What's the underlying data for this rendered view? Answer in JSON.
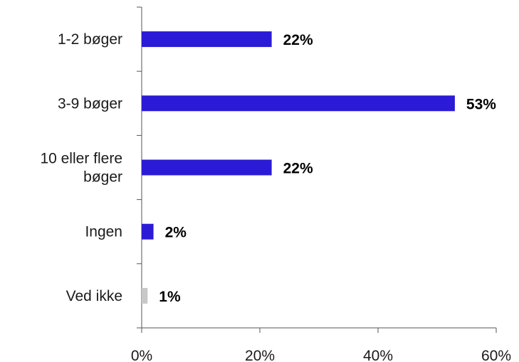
{
  "chart_data": {
    "type": "bar",
    "orientation": "horizontal",
    "categories": [
      "1-2 bøger",
      "3-9 bøger",
      "10 eller flere bøger",
      "Ingen",
      "Ved ikke"
    ],
    "category_lines": [
      [
        "1-2 bøger"
      ],
      [
        "3-9 bøger"
      ],
      [
        "10 eller flere",
        "bøger"
      ],
      [
        "Ingen"
      ],
      [
        "Ved ikke"
      ]
    ],
    "values": [
      22,
      53,
      22,
      2,
      1
    ],
    "value_labels": [
      "22%",
      "53%",
      "22%",
      "2%",
      "1%"
    ],
    "bar_colors": [
      "#2b1bd6",
      "#2b1bd6",
      "#2b1bd6",
      "#2b1bd6",
      "#c8c8c8"
    ],
    "xlim": [
      0,
      60
    ],
    "x_ticks": [
      0,
      20,
      40,
      60
    ],
    "x_tick_labels": [
      "0%",
      "20%",
      "40%",
      "60%"
    ],
    "grid": false,
    "legend": "none"
  }
}
